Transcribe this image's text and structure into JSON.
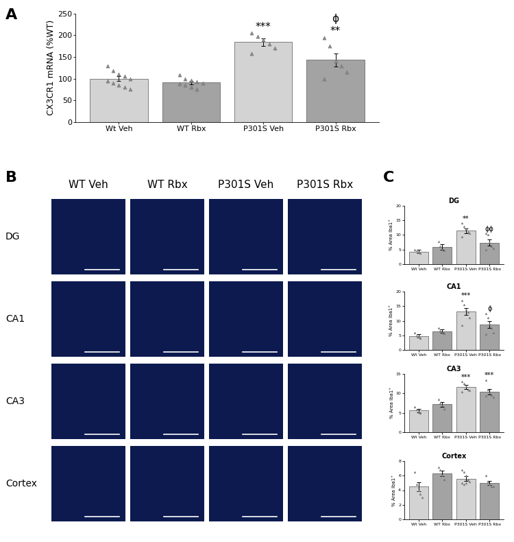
{
  "panel_labels": [
    "A",
    "B",
    "C"
  ],
  "image_grid": {
    "columns": [
      "WT Veh",
      "WT Rbx",
      "P301S Veh",
      "P301S Rbx"
    ],
    "rows": [
      "DG",
      "CA1",
      "CA3",
      "Cortex"
    ]
  },
  "chart_data": [
    {
      "type": "bar",
      "y_label": "CX3CR1 mRNA (%WT)",
      "categories": [
        "Wt Veh",
        "WT Rbx",
        "P301S Veh",
        "P301S Rbx"
      ],
      "values": [
        100,
        91,
        184,
        143
      ],
      "errors": [
        6,
        4,
        9,
        15
      ],
      "points": [
        [
          130,
          118,
          110,
          105,
          100,
          95,
          90,
          85,
          80,
          75
        ],
        [
          108,
          100,
          96,
          93,
          90,
          88,
          85,
          80,
          75
        ],
        [
          205,
          198,
          190,
          180,
          170,
          158
        ],
        [
          195,
          175,
          140,
          130,
          115,
          100
        ]
      ],
      "annotations": [
        [],
        [],
        [
          "***"
        ],
        [
          "**",
          "ϕ"
        ]
      ],
      "colors": [
        "#d3d3d3",
        "#a3a3a3",
        "#d3d3d3",
        "#a3a3a3"
      ],
      "marker": "triangle",
      "ylim": [
        0,
        250
      ],
      "yticks": [
        0,
        50,
        100,
        150,
        200,
        250
      ]
    },
    {
      "type": "bar",
      "title": "DG",
      "y_label": "% Area Iba1⁺",
      "categories": [
        "Wt Veh",
        "WT Rbx",
        "P301S Veh",
        "P301S Rbx"
      ],
      "values": [
        4.3,
        5.9,
        11.5,
        7.4
      ],
      "errors": [
        0.6,
        1.0,
        0.8,
        1.0
      ],
      "points": [
        [
          5.0,
          4.5,
          4.0,
          3.7
        ],
        [
          7.8,
          6.0,
          5.0,
          4.8
        ],
        [
          14.0,
          13.0,
          12.0,
          11.0,
          10.5,
          9.5
        ],
        [
          10.5,
          10.0,
          7.5,
          6.0,
          5.5,
          5.0
        ]
      ],
      "annotations": [
        [],
        [],
        [
          "**"
        ],
        [
          "ϕϕ"
        ]
      ],
      "colors": [
        "#d3d3d3",
        "#a3a3a3",
        "#d3d3d3",
        "#a3a3a3"
      ],
      "marker": "triangle",
      "ylim": [
        0,
        20
      ],
      "yticks": [
        0,
        5,
        10,
        15,
        20
      ]
    },
    {
      "type": "bar",
      "title": "CA1",
      "y_label": "% Area Iba1⁺",
      "categories": [
        "Wt Veh",
        "WT Rbx",
        "P301S Veh",
        "P301S Rbx"
      ],
      "values": [
        4.8,
        6.4,
        13.2,
        8.8
      ],
      "errors": [
        0.5,
        0.6,
        1.1,
        1.2
      ],
      "points": [
        [
          5.8,
          5.0,
          4.5,
          4.0
        ],
        [
          7.5,
          6.5,
          6.0,
          5.6
        ],
        [
          17.0,
          15.5,
          14.0,
          13.0,
          11.0,
          8.5
        ],
        [
          12.5,
          11.0,
          9.0,
          7.5,
          6.0,
          5.5
        ]
      ],
      "annotations": [
        [],
        [],
        [
          "***"
        ],
        [
          "ϕ"
        ]
      ],
      "colors": [
        "#d3d3d3",
        "#a3a3a3",
        "#d3d3d3",
        "#a3a3a3"
      ],
      "marker": "triangle",
      "ylim": [
        0,
        20
      ],
      "yticks": [
        0,
        5,
        10,
        15,
        20
      ]
    },
    {
      "type": "bar",
      "title": "CA3",
      "y_label": "% Area Iba1⁺",
      "categories": [
        "Wt Veh",
        "WT Rbx",
        "P301S Veh",
        "P301S Rbx"
      ],
      "values": [
        5.6,
        7.2,
        11.6,
        10.4
      ],
      "errors": [
        0.4,
        0.6,
        0.5,
        0.7
      ],
      "points": [
        [
          6.5,
          5.8,
          5.2,
          4.9
        ],
        [
          8.5,
          7.5,
          6.8,
          6.0
        ],
        [
          13.0,
          12.5,
          11.8,
          11.0,
          10.8,
          10.5
        ],
        [
          13.5,
          11.0,
          10.0,
          9.5,
          9.0,
          9.3
        ]
      ],
      "annotations": [
        [],
        [],
        [
          "***"
        ],
        [
          "***"
        ]
      ],
      "colors": [
        "#d3d3d3",
        "#a3a3a3",
        "#d3d3d3",
        "#a3a3a3"
      ],
      "marker": "triangle",
      "ylim": [
        0,
        15
      ],
      "yticks": [
        0,
        5,
        10,
        15
      ]
    },
    {
      "type": "bar",
      "title": "Cortex",
      "y_label": "% Area Iba1⁺",
      "categories": [
        "Wt Veh",
        "WT Rbx",
        "P301S Veh",
        "P301S Rbx"
      ],
      "values": [
        4.5,
        6.3,
        5.6,
        5.0
      ],
      "errors": [
        0.6,
        0.4,
        0.3,
        0.3
      ],
      "points": [
        [
          6.5,
          4.8,
          4.0,
          3.5,
          3.0
        ],
        [
          7.2,
          6.8,
          6.0,
          5.5
        ],
        [
          6.8,
          6.5,
          6.0,
          5.5,
          5.2,
          5.0,
          4.8,
          5.0
        ],
        [
          6.0,
          5.2,
          4.8,
          4.5,
          4.5
        ]
      ],
      "annotations": [
        [],
        [],
        [],
        []
      ],
      "colors": [
        "#d3d3d3",
        "#a3a3a3",
        "#d3d3d3",
        "#a3a3a3"
      ],
      "marker": "triangle",
      "ylim": [
        0,
        8
      ],
      "yticks": [
        0,
        2,
        4,
        6,
        8
      ]
    }
  ]
}
